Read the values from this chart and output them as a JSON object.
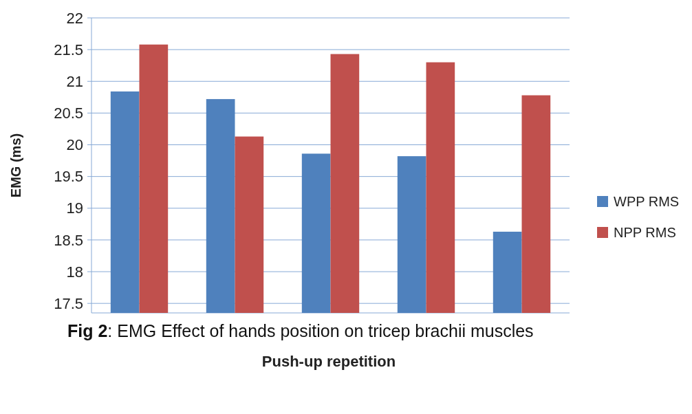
{
  "chart_data": {
    "type": "bar",
    "title": "Fig 2: EMG Effect of hands position on tricep brachii muscles",
    "xlabel": "Push-up repetition",
    "ylabel": "EMG (ms)",
    "categories": [
      null,
      null,
      null,
      null,
      null
    ],
    "series": [
      {
        "name": "WPP RMS",
        "color": "#4f81bd",
        "values": [
          20.84,
          20.72,
          19.86,
          19.82,
          18.63
        ]
      },
      {
        "name": "NPP RMS",
        "color": "#c0504d",
        "values": [
          21.58,
          20.13,
          21.43,
          21.3,
          20.78
        ]
      }
    ],
    "ylim": [
      17.35,
      22
    ],
    "yticks": [
      17.5,
      18,
      18.5,
      19,
      19.5,
      20,
      20.5,
      21,
      21.5,
      22
    ],
    "grid": "y",
    "legend": "right"
  }
}
